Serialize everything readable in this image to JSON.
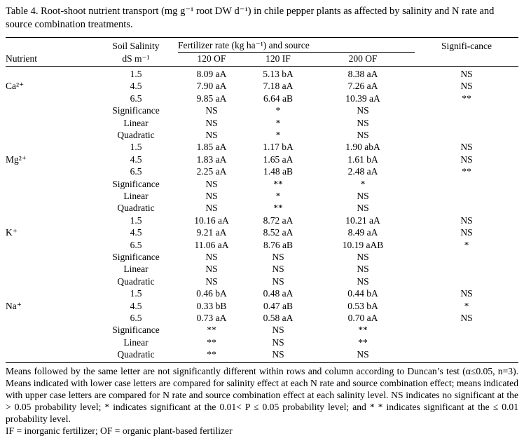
{
  "title": "Table 4. Root-shoot nutrient transport (mg g⁻¹ root DW d⁻¹) in chile pepper plants as affected by salinity and N rate and source combination treatments.",
  "table": {
    "header": {
      "nutrient": "Nutrient",
      "salinity_line1": "Soil Salinity",
      "salinity_line2": "dS m⁻¹",
      "fertilizer_group": "Fertilizer rate (kg ha⁻¹) and source",
      "fertilizer_cols": [
        "120 OF",
        "120 IF",
        "200 OF"
      ],
      "significance": "Signifi-cance"
    },
    "groups": [
      {
        "nutrient": "Ca²⁺",
        "rows": [
          {
            "label": "1.5",
            "values": [
              "8.09 aA",
              "5.13 bA",
              "8.38 aA"
            ],
            "sig": "NS"
          },
          {
            "label": "4.5",
            "values": [
              "7.90 aA",
              "7.18 aA",
              "7.26 aA"
            ],
            "sig": "NS"
          },
          {
            "label": "6.5",
            "values": [
              "9.85 aA",
              "6.64 aB",
              "10.39 aA"
            ],
            "sig": "**"
          },
          {
            "label": "Significance",
            "values": [
              "NS",
              "*",
              "NS"
            ],
            "sig": ""
          },
          {
            "label": "Linear",
            "values": [
              "NS",
              "*",
              "NS"
            ],
            "sig": ""
          },
          {
            "label": "Quadratic",
            "values": [
              "NS",
              "*",
              "NS"
            ],
            "sig": ""
          }
        ]
      },
      {
        "nutrient": "Mg²⁺",
        "rows": [
          {
            "label": "1.5",
            "values": [
              "1.85 aA",
              "1.17 bA",
              "1.90 abA"
            ],
            "sig": "NS"
          },
          {
            "label": "4.5",
            "values": [
              "1.83 aA",
              "1.65 aA",
              "1.61 bA"
            ],
            "sig": "NS"
          },
          {
            "label": "6.5",
            "values": [
              "2.25 aA",
              "1.48 aB",
              "2.48 aA"
            ],
            "sig": "**"
          },
          {
            "label": "Significance",
            "values": [
              "NS",
              "**",
              "*"
            ],
            "sig": ""
          },
          {
            "label": "Linear",
            "values": [
              "NS",
              "*",
              "NS"
            ],
            "sig": ""
          },
          {
            "label": "Quadratic",
            "values": [
              "NS",
              "**",
              "NS"
            ],
            "sig": ""
          }
        ]
      },
      {
        "nutrient": "K⁺",
        "rows": [
          {
            "label": "1.5",
            "values": [
              "10.16 aA",
              "8.72 aA",
              "10.21 aA"
            ],
            "sig": "NS"
          },
          {
            "label": "4.5",
            "values": [
              "9.21 aA",
              "8.52 aA",
              "8.49 aA"
            ],
            "sig": "NS"
          },
          {
            "label": "6.5",
            "values": [
              "11.06 aA",
              "8.76 aB",
              "10.19 aAB"
            ],
            "sig": "*"
          },
          {
            "label": "Significance",
            "values": [
              "NS",
              "NS",
              "NS"
            ],
            "sig": ""
          },
          {
            "label": "Linear",
            "values": [
              "NS",
              "NS",
              "NS"
            ],
            "sig": ""
          },
          {
            "label": "Quadratic",
            "values": [
              "NS",
              "NS",
              "NS"
            ],
            "sig": ""
          }
        ]
      },
      {
        "nutrient": "Na⁺",
        "rows": [
          {
            "label": "1.5",
            "values": [
              "0.46 bA",
              "0.48 aA",
              "0.44 bA"
            ],
            "sig": "NS"
          },
          {
            "label": "4.5",
            "values": [
              "0.33 bB",
              "0.47 aB",
              "0.53 bA"
            ],
            "sig": "*"
          },
          {
            "label": "6.5",
            "values": [
              "0.73 aA",
              "0.58 aA",
              "0.70 aA"
            ],
            "sig": "NS"
          },
          {
            "label": "Significance",
            "values": [
              "**",
              "NS",
              "**"
            ],
            "sig": ""
          },
          {
            "label": "Linear",
            "values": [
              "**",
              "NS",
              "**"
            ],
            "sig": ""
          },
          {
            "label": "Quadratic",
            "values": [
              "**",
              "NS",
              "NS"
            ],
            "sig": ""
          }
        ]
      }
    ]
  },
  "footnotes": [
    "Means followed by the same letter are not significantly different within rows and column according to Duncan’s test (α≤0.05, n=3). Means indicated with lower case letters are compared for salinity effect at each N rate and source combination effect; means indicated with upper case letters are compared for N rate and source combination effect at each salinity level. NS indicates no significant at the > 0.05 probability level; * indicates significant at the  0.01< P ≤ 0.05  probability level; and * * indicates significant at the ≤ 0.01 probability level.",
    "IF = inorganic fertilizer; OF = organic plant-based fertilizer"
  ]
}
